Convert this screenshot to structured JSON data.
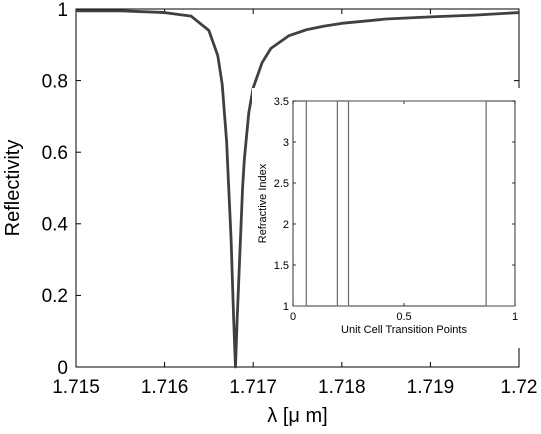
{
  "chart_data": [
    {
      "type": "line",
      "xlabel": "λ [μ m]",
      "ylabel": "Reflectivity",
      "xlim": [
        1.715,
        1.72
      ],
      "ylim": [
        0,
        1
      ],
      "x_ticks": [
        "1.715",
        "1.716",
        "1.717",
        "1.718",
        "1.719",
        "1.72"
      ],
      "y_ticks": [
        "0",
        "0.2",
        "0.4",
        "0.6",
        "0.8",
        "1"
      ],
      "grid": false,
      "line_color": "#404040",
      "series": [
        {
          "x": [
            1.715,
            1.7155,
            1.716,
            1.7163,
            1.7165,
            1.7166,
            1.71665,
            1.7167,
            1.71672,
            1.71675,
            1.71678,
            1.7168,
            1.71682,
            1.71685,
            1.71688,
            1.7169,
            1.71695,
            1.717,
            1.7171,
            1.7172,
            1.7174,
            1.7176,
            1.7178,
            1.718,
            1.7185,
            1.719,
            1.7195,
            1.72
          ],
          "y": [
            0.995,
            0.995,
            0.99,
            0.98,
            0.94,
            0.87,
            0.79,
            0.63,
            0.52,
            0.36,
            0.13,
            0.0,
            0.14,
            0.32,
            0.5,
            0.58,
            0.71,
            0.78,
            0.85,
            0.89,
            0.925,
            0.942,
            0.952,
            0.96,
            0.972,
            0.978,
            0.983,
            0.99
          ]
        }
      ]
    },
    {
      "type": "line",
      "xlabel": "Unit Cell Transition Points",
      "ylabel": "Refractive Index",
      "xlim": [
        0,
        1
      ],
      "ylim": [
        1,
        3.5
      ],
      "x_ticks": [
        "0",
        "0.5",
        "1"
      ],
      "y_ticks": [
        "1",
        "1.5",
        "2",
        "2.5",
        "3",
        "3.5"
      ],
      "grid": false,
      "series": [
        {
          "x": [
            0,
            0.06,
            0.06,
            0.2,
            0.2,
            0.25,
            0.25,
            0.87,
            0.87,
            1
          ],
          "y": [
            1,
            1,
            3.5,
            3.5,
            1,
            1,
            3.5,
            3.5,
            1,
            1
          ]
        }
      ]
    }
  ]
}
